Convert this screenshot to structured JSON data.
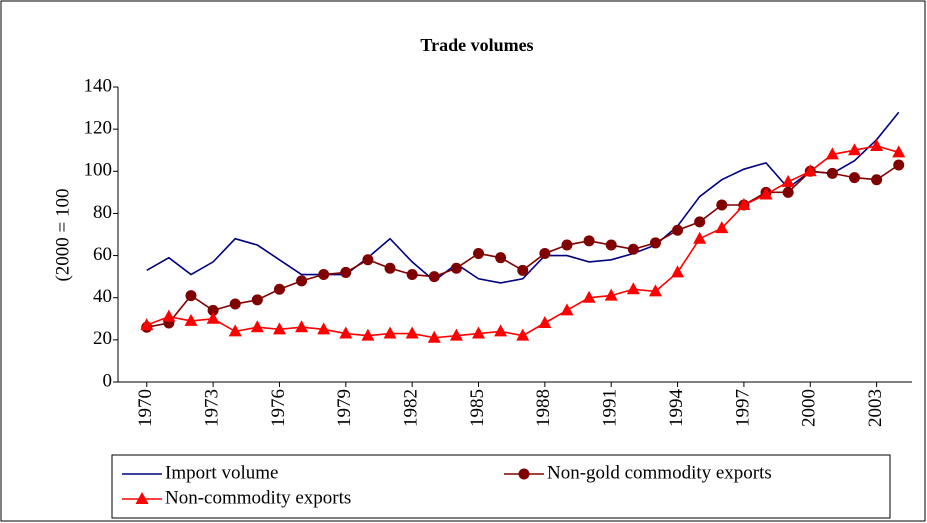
{
  "chart_data": {
    "type": "line",
    "title": "Trade volumes",
    "y_label": "(2000 = 100",
    "x": [
      1970,
      1971,
      1972,
      1973,
      1974,
      1975,
      1976,
      1977,
      1978,
      1979,
      1980,
      1981,
      1982,
      1983,
      1984,
      1985,
      1986,
      1987,
      1988,
      1989,
      1990,
      1991,
      1992,
      1993,
      1994,
      1995,
      1996,
      1997,
      1998,
      1999,
      2000,
      2001,
      2002,
      2003,
      2004
    ],
    "xlim": [
      1968.7,
      2004.6
    ],
    "xticks": [
      1970,
      1973,
      1976,
      1979,
      1982,
      1985,
      1988,
      1991,
      1994,
      1997,
      2000,
      2003
    ],
    "ylim": [
      0,
      140
    ],
    "yticks": [
      0,
      20,
      40,
      60,
      80,
      100,
      120,
      140
    ],
    "grid": false,
    "legend": "bottom",
    "series": [
      {
        "name": "Import volume",
        "color": "#000080",
        "marker": "none",
        "values": [
          53,
          59,
          51,
          57,
          68,
          65,
          58,
          51,
          51,
          51,
          59,
          68,
          57,
          48,
          56,
          49,
          47,
          49,
          60,
          60,
          57,
          58,
          61,
          65,
          74,
          88,
          96,
          101,
          104,
          92,
          100,
          99,
          105,
          115,
          128
        ]
      },
      {
        "name": "Non-gold commodity exports",
        "color": "#800000",
        "marker": "circle",
        "values": [
          26,
          28,
          41,
          34,
          37,
          39,
          44,
          48,
          51,
          52,
          58,
          54,
          51,
          50,
          54,
          61,
          59,
          53,
          61,
          65,
          67,
          65,
          63,
          66,
          72,
          76,
          84,
          84,
          90,
          90,
          100,
          99,
          97,
          96,
          103
        ]
      },
      {
        "name": "Non-commodity exports",
        "color": "#ff0000",
        "marker": "triangle",
        "values": [
          27,
          31,
          29,
          30,
          24,
          26,
          25,
          26,
          25,
          23,
          22,
          23,
          23,
          21,
          22,
          23,
          24,
          22,
          28,
          34,
          40,
          41,
          44,
          43,
          52,
          68,
          73,
          84,
          89,
          95,
          100,
          108,
          110,
          112,
          109
        ]
      }
    ]
  }
}
